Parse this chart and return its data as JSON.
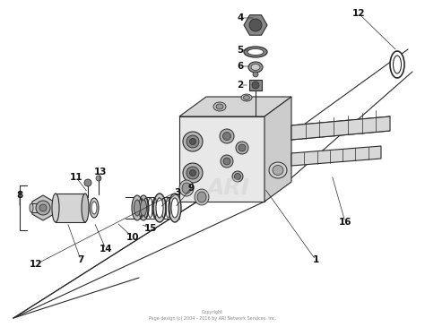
{
  "bg_color": "#ffffff",
  "line_color": "#2a2a2a",
  "label_color": "#111111",
  "copyright_text": "Copyright\nPage design (c) 2004 - 2016 by ARI Network Services, Inc.",
  "figsize": [
    4.74,
    3.65
  ],
  "dpi": 100
}
